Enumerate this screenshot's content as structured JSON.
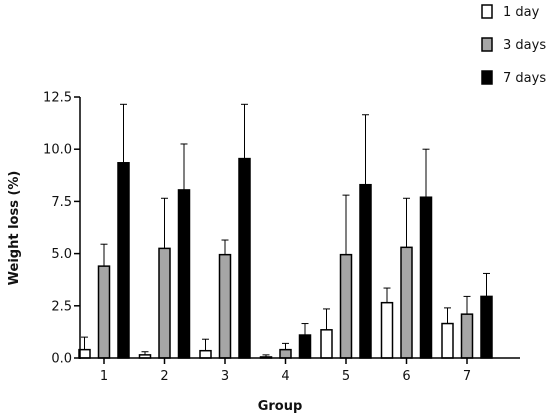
{
  "chart_data": {
    "type": "bar",
    "title": "",
    "xlabel": "Group",
    "ylabel": "Weight loss (%)",
    "categories": [
      "1",
      "2",
      "3",
      "4",
      "5",
      "6",
      "7"
    ],
    "ylim": [
      0,
      12.5
    ],
    "yticks": [
      "0.0",
      "2.5",
      "5.0",
      "7.5",
      "10.0",
      "12.5"
    ],
    "grid": false,
    "legend_position": "top-right",
    "series": [
      {
        "name": "1 day",
        "fill": "#ffffff",
        "values": [
          0.4,
          0.15,
          0.35,
          0.05,
          1.35,
          2.65,
          1.65
        ],
        "errors": [
          0.6,
          0.15,
          0.55,
          0.1,
          1.0,
          0.7,
          0.75
        ]
      },
      {
        "name": "3 days",
        "fill": "#a6a6a6",
        "values": [
          4.4,
          5.25,
          4.95,
          0.4,
          4.95,
          5.3,
          2.1
        ],
        "errors": [
          1.05,
          2.4,
          0.7,
          0.3,
          2.85,
          2.35,
          0.85
        ]
      },
      {
        "name": "7 days",
        "fill": "#000000",
        "values": [
          9.35,
          8.05,
          9.55,
          1.1,
          8.3,
          7.7,
          2.95
        ],
        "errors": [
          2.8,
          2.2,
          2.6,
          0.55,
          3.35,
          2.3,
          1.1
        ]
      }
    ]
  }
}
